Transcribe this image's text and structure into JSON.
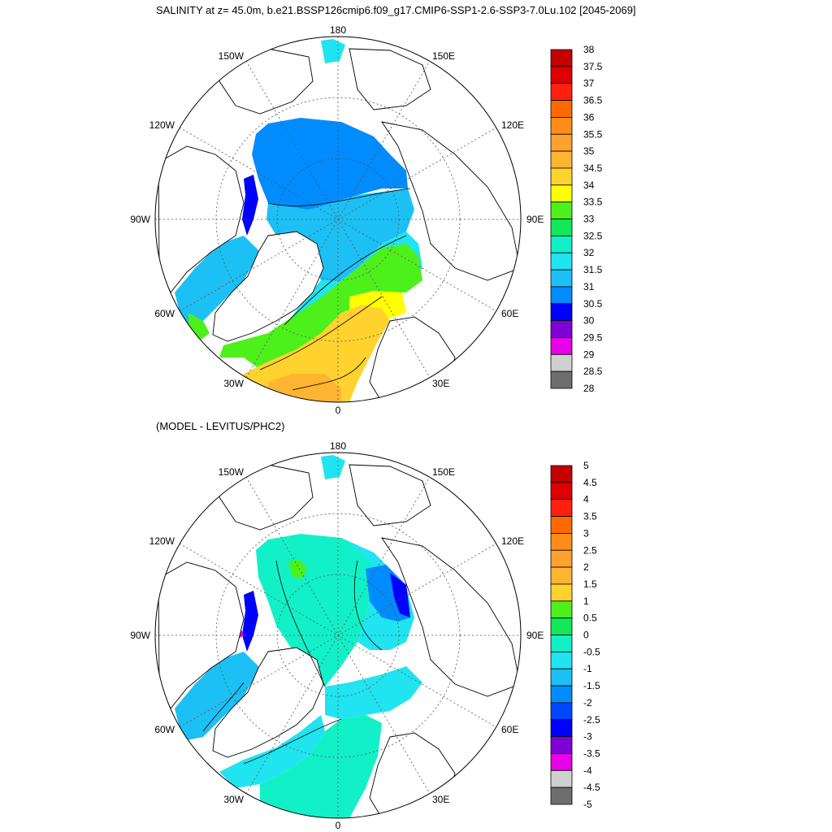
{
  "top_panel": {
    "title": "SALINITY at z=  45.0m, b.e21.BSSP126cmip6.f09_g17.CMIP6-SSP1-2.6-SSP3-7.0Lu.102 [2045-2069]",
    "lon_labels": {
      "n": "180",
      "s": "0",
      "e": "90E",
      "w": "90W",
      "nw": "150W",
      "ne": "150E",
      "wnw": "120W",
      "ene": "120E",
      "wsw": "60W",
      "ese": "60E",
      "ssw": "30W",
      "sse": "30E"
    },
    "colorbar": {
      "labels": [
        "38",
        "37.5",
        "37",
        "36.5",
        "36",
        "35.5",
        "35",
        "34.5",
        "34",
        "33.5",
        "33",
        "32.5",
        "32",
        "31.5",
        "31",
        "30.5",
        "30",
        "29.5",
        "29",
        "28.5",
        "28"
      ],
      "colors": [
        "#c40000",
        "#e00000",
        "#ff2010",
        "#ff6a00",
        "#ff8c18",
        "#ffa030",
        "#ffb432",
        "#ffd22e",
        "#ffff00",
        "#4ef01c",
        "#12e858",
        "#12f0c8",
        "#20e4f0",
        "#1cc0f4",
        "#008cff",
        "#0000ff",
        "#8000d8",
        "#e800e8",
        "#cfcfcf",
        "#6e6e6e"
      ]
    }
  },
  "bottom_panel": {
    "title": "(MODEL - LEVITUS/PHC2)",
    "lon_labels": {
      "n": "180",
      "s": "0",
      "e": "90E",
      "w": "90W",
      "nw": "150W",
      "ne": "150E",
      "wnw": "120W",
      "ene": "120E",
      "wsw": "60W",
      "ese": "60E",
      "ssw": "30W",
      "sse": "30E"
    },
    "colorbar": {
      "labels": [
        "5",
        "4.5",
        "4",
        "3.5",
        "3",
        "2.5",
        "2",
        "1.5",
        "1",
        "0.5",
        "0",
        "-0.5",
        "-1",
        "-1.5",
        "-2",
        "-2.5",
        "-3",
        "-3.5",
        "-4",
        "-4.5",
        "-5"
      ],
      "colors": [
        "#c40000",
        "#e00000",
        "#ff2010",
        "#ff6a00",
        "#ff8c18",
        "#ffa030",
        "#ffb432",
        "#ffd22e",
        "#4ef01c",
        "#12e858",
        "#12f0c8",
        "#20e4f0",
        "#1cc0f4",
        "#008cff",
        "#0048ff",
        "#0000ff",
        "#8000d8",
        "#e800e8",
        "#cfcfcf",
        "#6e6e6e"
      ]
    }
  }
}
